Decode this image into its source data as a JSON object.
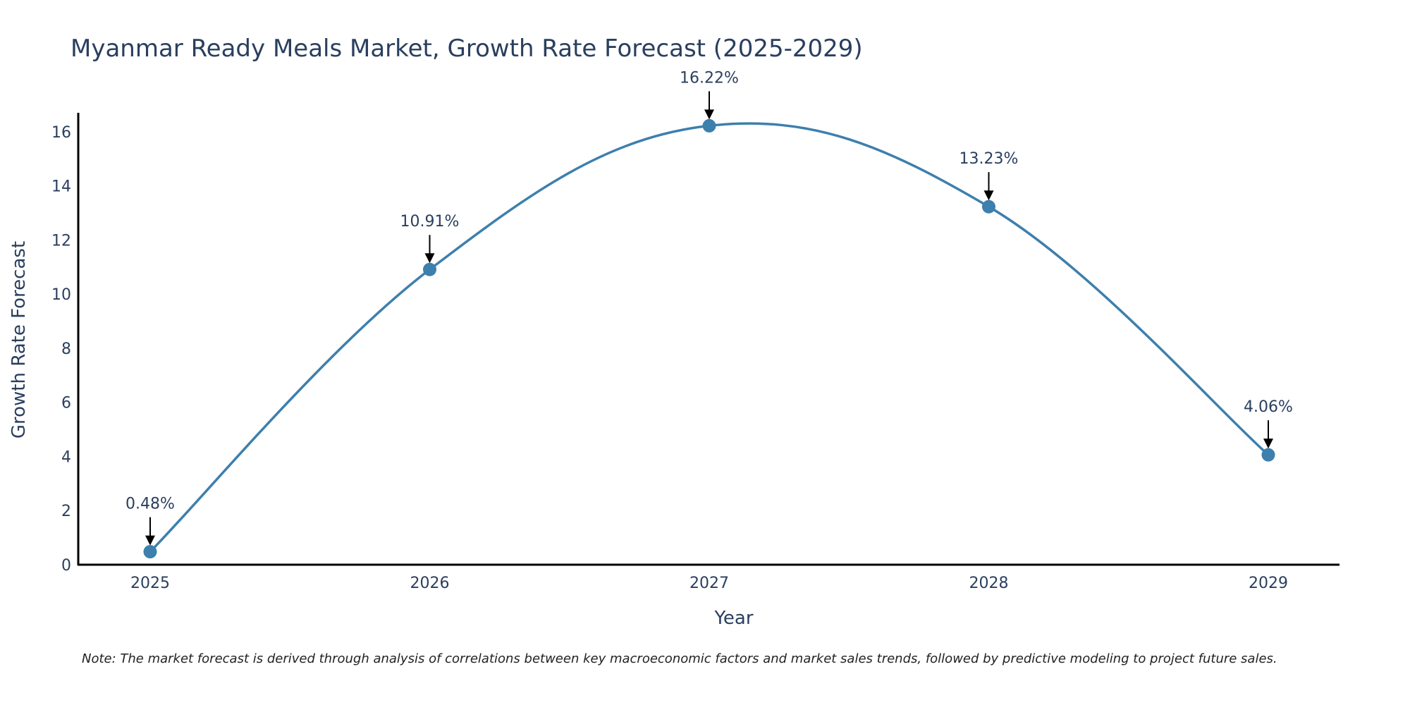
{
  "chart_data": {
    "type": "line",
    "title": "Myanmar Ready Meals Market, Growth Rate Forecast (2025-2029)",
    "xlabel": "Year",
    "ylabel": "Growth Rate Forecast",
    "categories": [
      "2025",
      "2026",
      "2027",
      "2028",
      "2029"
    ],
    "series": [
      {
        "name": "Growth Rate Forecast",
        "values": [
          0.48,
          10.91,
          16.22,
          13.23,
          4.06
        ],
        "labels": [
          "0.48%",
          "10.91%",
          "16.22%",
          "13.23%",
          "4.06%"
        ]
      }
    ],
    "ylim": [
      0,
      16.7
    ],
    "yticks": [
      0,
      2,
      4,
      6,
      8,
      10,
      12,
      14,
      16
    ],
    "ytick_labels": [
      "0",
      "2",
      "4",
      "6",
      "8",
      "10",
      "12",
      "14",
      "16"
    ],
    "grid": false,
    "line_shape": "spline",
    "colors": {
      "line": "#3d7fad",
      "marker": "#3d7fad",
      "axis": "#000000",
      "arrow": "#000000",
      "text": "#2a3f5f"
    },
    "note": "Note: The market forecast is derived through analysis of correlations between key macroeconomic factors and market sales trends, followed by predictive modeling to project future sales."
  }
}
